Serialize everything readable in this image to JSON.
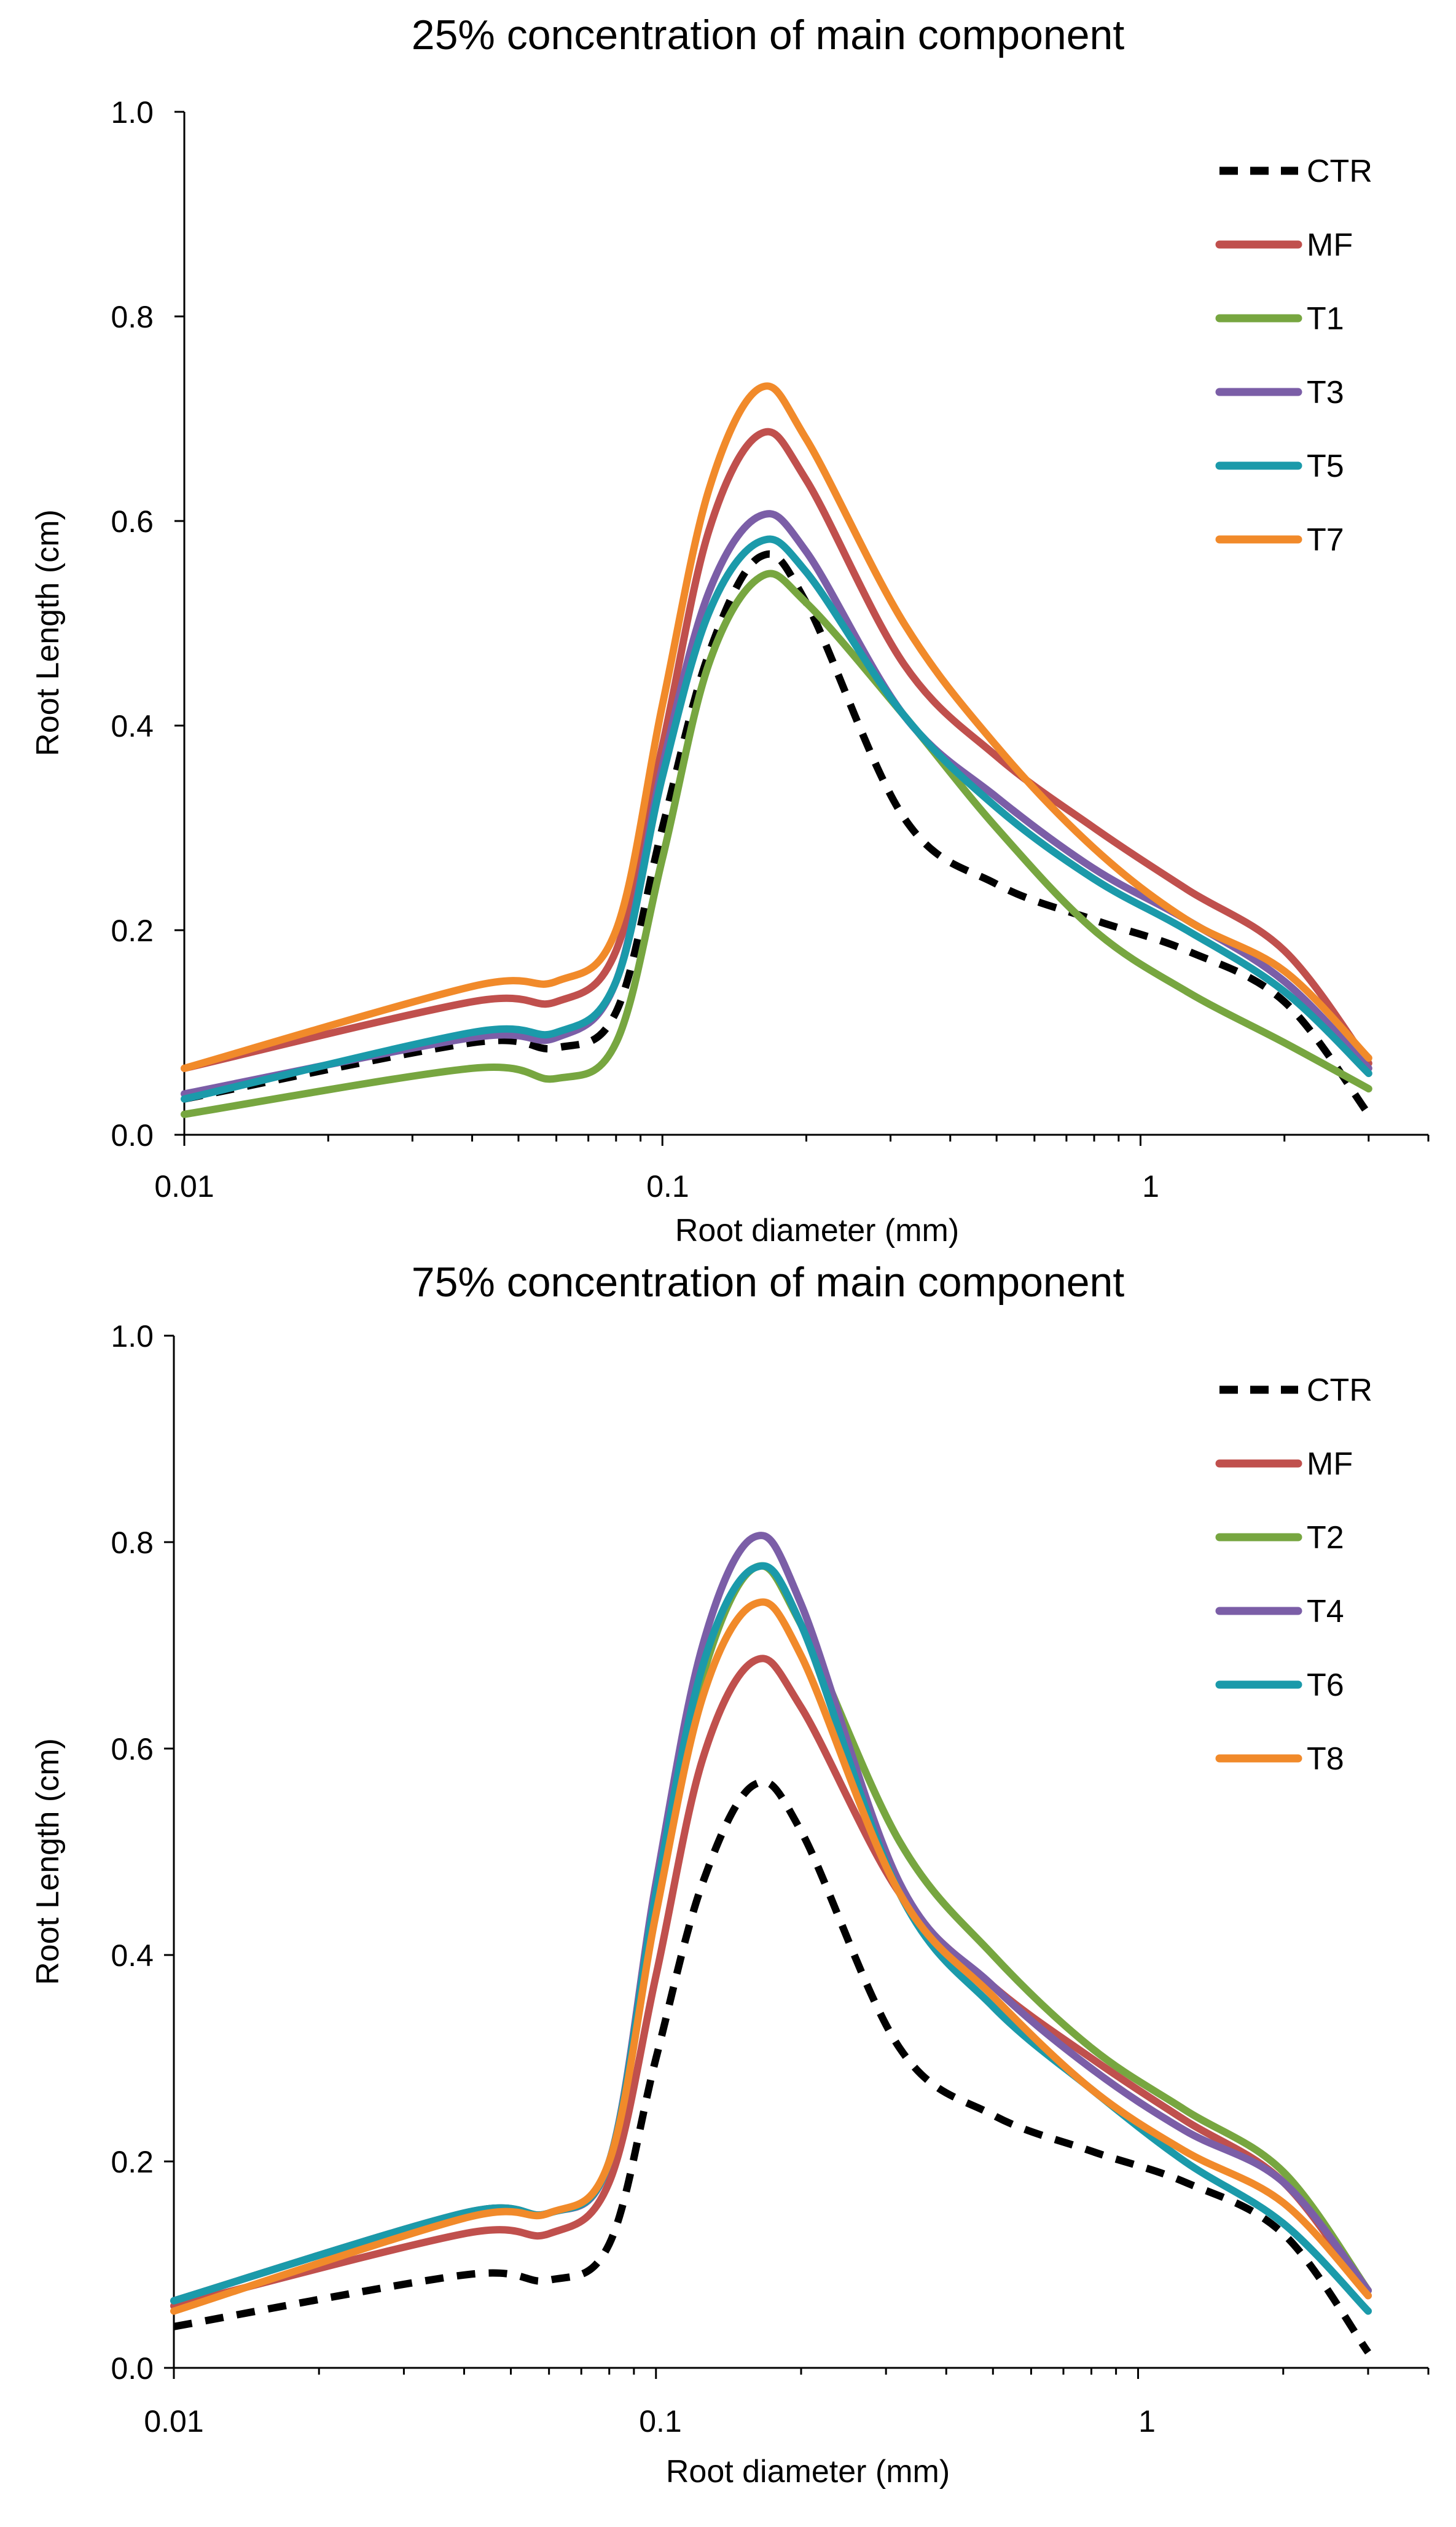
{
  "chart_data": [
    {
      "type": "line",
      "title": "25% concentration of main component",
      "xlabel": "Root diameter (mm)",
      "ylabel": "Root Length (cm)",
      "xscale": "log",
      "xlim": [
        0.01,
        4
      ],
      "ylim": [
        0,
        1.0
      ],
      "xticks": [
        0.01,
        0.1,
        1
      ],
      "xtick_labels": [
        "0.01",
        "0.1",
        "1"
      ],
      "yticks": [
        0,
        0.2,
        0.4,
        0.6,
        0.8,
        1.0
      ],
      "ytick_labels": [
        "0.0",
        "0.2",
        "0.4",
        "0.6",
        "0.8",
        "1.0"
      ],
      "grid": false,
      "legend_position": "top-right",
      "x": [
        0.01,
        0.04,
        0.06,
        0.08,
        0.1,
        0.125,
        0.16,
        0.2,
        0.32,
        0.5,
        0.8,
        1.25,
        2.0,
        3.0
      ],
      "series": [
        {
          "name": "CTR",
          "color": "#000000",
          "dash": true,
          "values": [
            0.035,
            0.09,
            0.085,
            0.12,
            0.3,
            0.47,
            0.565,
            0.52,
            0.31,
            0.245,
            0.21,
            0.18,
            0.13,
            0.02
          ]
        },
        {
          "name": "MF",
          "color": "#c0504d",
          "dash": false,
          "values": [
            0.065,
            0.13,
            0.13,
            0.18,
            0.38,
            0.59,
            0.685,
            0.64,
            0.46,
            0.37,
            0.3,
            0.24,
            0.18,
            0.07
          ]
        },
        {
          "name": "T1",
          "color": "#77a640",
          "dash": false,
          "values": [
            0.02,
            0.065,
            0.055,
            0.09,
            0.27,
            0.46,
            0.545,
            0.52,
            0.41,
            0.3,
            0.2,
            0.14,
            0.09,
            0.045
          ]
        },
        {
          "name": "T3",
          "color": "#7b5ea7",
          "dash": false,
          "values": [
            0.04,
            0.095,
            0.095,
            0.15,
            0.36,
            0.53,
            0.605,
            0.57,
            0.41,
            0.33,
            0.26,
            0.21,
            0.15,
            0.065
          ]
        },
        {
          "name": "T5",
          "color": "#1b9aaa",
          "dash": false,
          "values": [
            0.035,
            0.1,
            0.1,
            0.15,
            0.35,
            0.51,
            0.58,
            0.55,
            0.41,
            0.32,
            0.25,
            0.2,
            0.14,
            0.06
          ]
        },
        {
          "name": "T7",
          "color": "#f18a2a",
          "dash": false,
          "values": [
            0.065,
            0.145,
            0.15,
            0.2,
            0.42,
            0.63,
            0.73,
            0.68,
            0.5,
            0.38,
            0.28,
            0.21,
            0.16,
            0.075
          ]
        }
      ]
    },
    {
      "type": "line",
      "title": "75% concentration of main component",
      "xlabel": "Root diameter (mm)",
      "ylabel": "Root Length (cm)",
      "xscale": "log",
      "xlim": [
        0.01,
        4
      ],
      "ylim": [
        0,
        1.0
      ],
      "xticks": [
        0.01,
        0.1,
        1
      ],
      "xtick_labels": [
        "0.01",
        "0.1",
        "1"
      ],
      "yticks": [
        0,
        0.2,
        0.4,
        0.6,
        0.8,
        1.0
      ],
      "ytick_labels": [
        "0.0",
        "0.2",
        "0.4",
        "0.6",
        "0.8",
        "1.0"
      ],
      "grid": false,
      "legend_position": "top-right",
      "x": [
        0.01,
        0.04,
        0.06,
        0.08,
        0.1,
        0.125,
        0.16,
        0.2,
        0.32,
        0.5,
        0.8,
        1.25,
        2.0,
        3.0
      ],
      "series": [
        {
          "name": "CTR",
          "color": "#000000",
          "dash": true,
          "values": [
            0.04,
            0.09,
            0.085,
            0.12,
            0.3,
            0.47,
            0.565,
            0.52,
            0.31,
            0.245,
            0.21,
            0.18,
            0.13,
            0.015
          ]
        },
        {
          "name": "MF",
          "color": "#c0504d",
          "dash": false,
          "values": [
            0.06,
            0.13,
            0.13,
            0.18,
            0.38,
            0.59,
            0.685,
            0.64,
            0.46,
            0.37,
            0.3,
            0.24,
            0.18,
            0.07
          ]
        },
        {
          "name": "T2",
          "color": "#77a640",
          "dash": false,
          "values": [
            0.065,
            0.15,
            0.15,
            0.2,
            0.45,
            0.67,
            0.775,
            0.72,
            0.51,
            0.4,
            0.31,
            0.25,
            0.19,
            0.075
          ]
        },
        {
          "name": "T4",
          "color": "#7b5ea7",
          "dash": false,
          "values": [
            0.065,
            0.15,
            0.15,
            0.2,
            0.47,
            0.7,
            0.805,
            0.74,
            0.47,
            0.37,
            0.29,
            0.23,
            0.18,
            0.075
          ]
        },
        {
          "name": "T6",
          "color": "#1b9aaa",
          "dash": false,
          "values": [
            0.065,
            0.15,
            0.15,
            0.2,
            0.46,
            0.68,
            0.775,
            0.72,
            0.46,
            0.35,
            0.27,
            0.2,
            0.14,
            0.055
          ]
        },
        {
          "name": "T8",
          "color": "#f18a2a",
          "dash": false,
          "values": [
            0.055,
            0.145,
            0.15,
            0.2,
            0.44,
            0.65,
            0.74,
            0.69,
            0.46,
            0.36,
            0.27,
            0.21,
            0.16,
            0.07
          ]
        }
      ]
    }
  ]
}
